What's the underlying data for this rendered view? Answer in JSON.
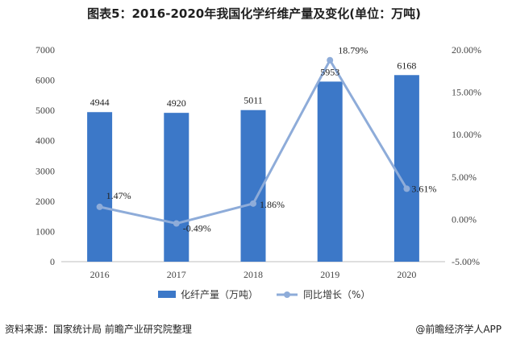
{
  "title": "图表5：2016-2020年我国化学纤维产量及变化(单位：万吨)",
  "source": "资料来源：国家统计局 前瞻产业研究院整理",
  "brand": "@前瞻经济学人APP",
  "colors": {
    "bar": "#3c78c8",
    "line": "#8eacd9",
    "axis": "#bfbfbf"
  },
  "chart_data": {
    "type": "bar",
    "categories": [
      "2016",
      "2017",
      "2018",
      "2019",
      "2020"
    ],
    "series": [
      {
        "name": "化纤产量（万吨）",
        "type": "bar",
        "axis": "left",
        "values": [
          4944,
          4920,
          5011,
          5953,
          6168
        ],
        "labels": [
          "4944",
          "4920",
          "5011",
          "5953",
          "6168"
        ]
      },
      {
        "name": "同比增长（%）",
        "type": "line",
        "axis": "right",
        "values": [
          1.47,
          -0.49,
          1.86,
          18.79,
          3.61
        ],
        "labels": [
          "1.47%",
          "-0.49%",
          "1.86%",
          "18.79%",
          "3.61%"
        ]
      }
    ],
    "y_left": {
      "lim": [
        0,
        7000
      ],
      "ticks": [
        "0",
        "1000",
        "2000",
        "3000",
        "4000",
        "5000",
        "6000",
        "7000"
      ]
    },
    "y_right": {
      "lim": [
        -5,
        20
      ],
      "ticks": [
        "-5.00%",
        "0.00%",
        "5.00%",
        "10.00%",
        "15.00%",
        "20.00%"
      ]
    },
    "legend_position": "bottom",
    "grid": false
  }
}
